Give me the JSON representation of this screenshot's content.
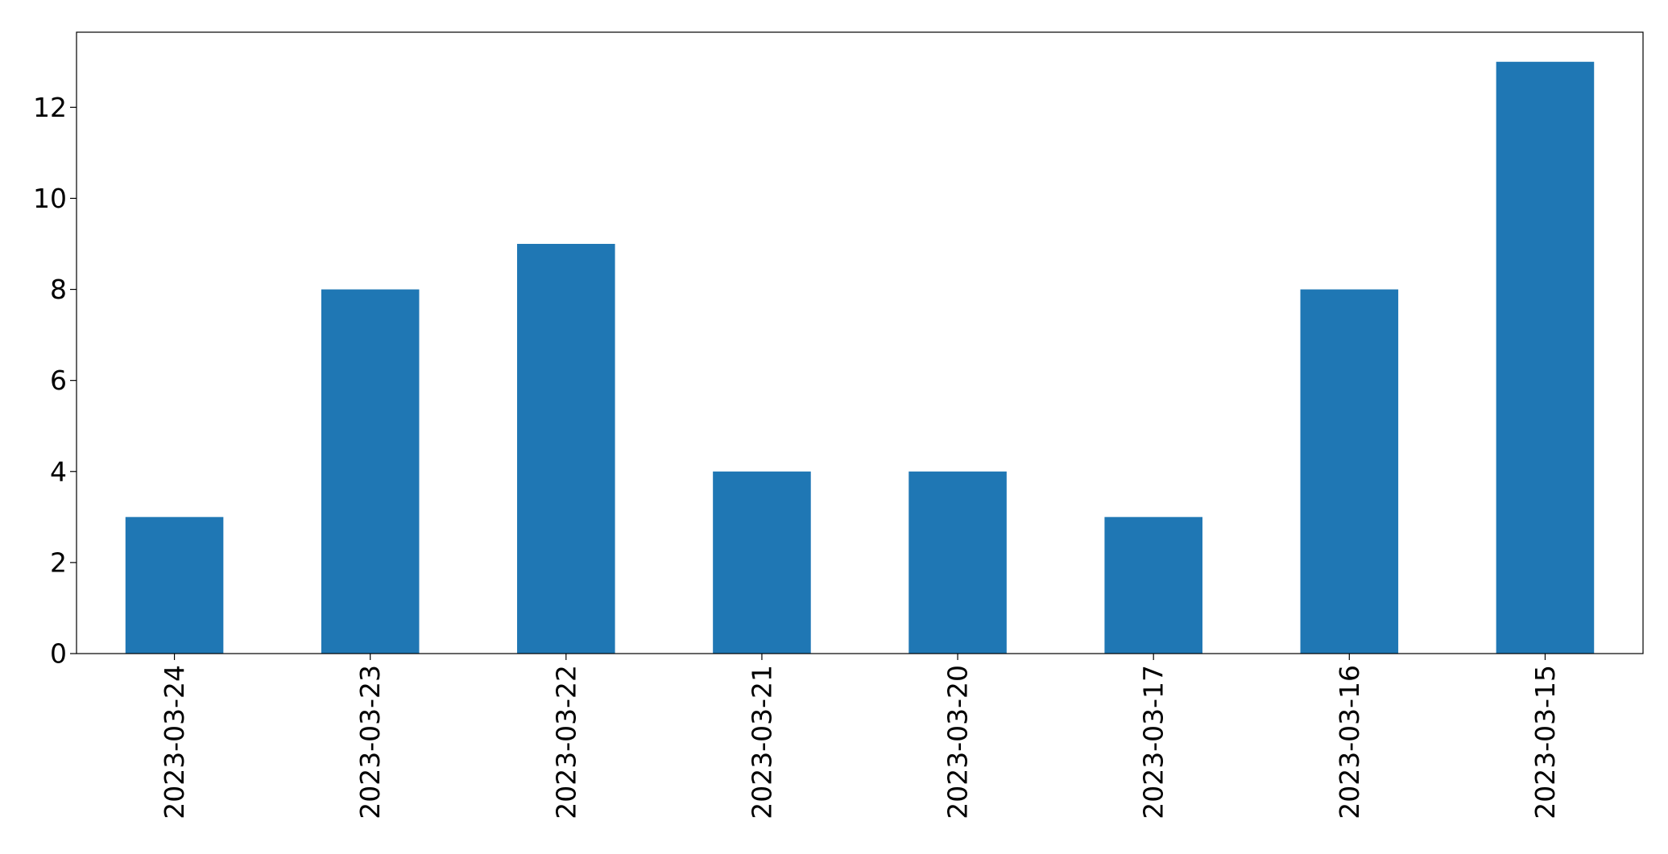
{
  "chart_data": {
    "type": "bar",
    "categories": [
      "2023-03-24",
      "2023-03-23",
      "2023-03-22",
      "2023-03-21",
      "2023-03-20",
      "2023-03-17",
      "2023-03-16",
      "2023-03-15"
    ],
    "values": [
      3,
      8,
      9,
      4,
      4,
      3,
      8,
      13
    ],
    "title": "",
    "xlabel": "",
    "ylabel": "",
    "ylim": [
      0,
      13.65
    ],
    "yticks": [
      0,
      2,
      4,
      6,
      8,
      10,
      12
    ],
    "grid": false,
    "bar_color": "#1f77b4",
    "x_tick_rotation": "vertical"
  }
}
